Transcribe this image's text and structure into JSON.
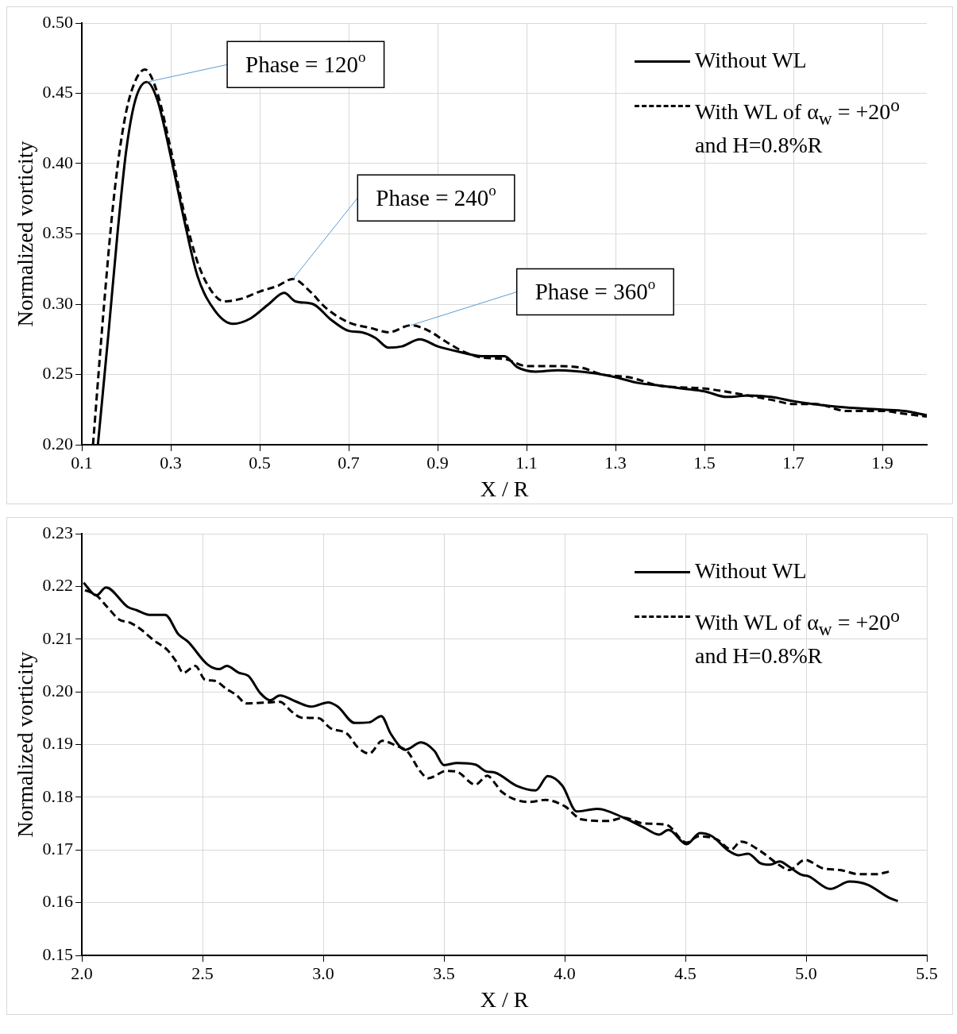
{
  "chart_data": [
    {
      "type": "line",
      "xlabel": "X / R",
      "ylabel": "Normalized vorticity",
      "xlim": [
        0.1,
        2.0
      ],
      "xticks": [
        0.1,
        0.3,
        0.5,
        0.7,
        0.9,
        1.1,
        1.3,
        1.5,
        1.7,
        1.9
      ],
      "ylim": [
        0.2,
        0.5
      ],
      "yticks": [
        {
          "value": 0.2,
          "label": "0.20"
        },
        0.25,
        {
          "value": 0.3,
          "label": "0.30"
        },
        0.35,
        {
          "value": 0.4,
          "label": "0.40"
        },
        0.45,
        {
          "value": 0.5,
          "label": "0.50"
        }
      ],
      "grid": true,
      "legend": "top right",
      "marker": "none",
      "series": [
        {
          "name": "Without WL",
          "color": "#000000",
          "line_style": "solid",
          "x": [
            0.136,
            0.16,
            0.18,
            0.2,
            0.22,
            0.246,
            0.27,
            0.3,
            0.33,
            0.36,
            0.4,
            0.44,
            0.48,
            0.52,
            0.555,
            0.58,
            0.62,
            0.66,
            0.7,
            0.73,
            0.76,
            0.79,
            0.82,
            0.86,
            0.9,
            0.95,
            1.0,
            1.05,
            1.08,
            1.12,
            1.17,
            1.25,
            1.3,
            1.35,
            1.4,
            1.45,
            1.5,
            1.55,
            1.6,
            1.65,
            1.7,
            1.8,
            1.9,
            1.95,
            2.0
          ],
          "values": [
            0.2,
            0.28,
            0.35,
            0.41,
            0.445,
            0.458,
            0.445,
            0.405,
            0.36,
            0.32,
            0.295,
            0.286,
            0.29,
            0.3,
            0.308,
            0.302,
            0.3,
            0.289,
            0.281,
            0.28,
            0.276,
            0.269,
            0.27,
            0.275,
            0.27,
            0.266,
            0.263,
            0.263,
            0.255,
            0.252,
            0.253,
            0.251,
            0.248,
            0.244,
            0.242,
            0.24,
            0.238,
            0.234,
            0.235,
            0.234,
            0.231,
            0.227,
            0.225,
            0.224,
            0.221
          ]
        },
        {
          "name": "With WL of α$_{w}$ = +20$^{o}$ and H=0.8%R",
          "color": "#000000",
          "line_style": "dashed",
          "x": [
            0.125,
            0.15,
            0.17,
            0.19,
            0.21,
            0.242,
            0.27,
            0.3,
            0.33,
            0.36,
            0.39,
            0.42,
            0.46,
            0.5,
            0.54,
            0.575,
            0.61,
            0.65,
            0.7,
            0.75,
            0.79,
            0.84,
            0.88,
            0.92,
            0.96,
            1.0,
            1.05,
            1.1,
            1.15,
            1.22,
            1.27,
            1.33,
            1.4,
            1.5,
            1.58,
            1.65,
            1.7,
            1.75,
            1.82,
            1.9,
            1.95,
            2.0
          ],
          "values": [
            0.2,
            0.3,
            0.37,
            0.42,
            0.45,
            0.467,
            0.45,
            0.41,
            0.365,
            0.33,
            0.31,
            0.302,
            0.304,
            0.309,
            0.313,
            0.318,
            0.31,
            0.297,
            0.287,
            0.283,
            0.28,
            0.285,
            0.281,
            0.273,
            0.266,
            0.262,
            0.261,
            0.256,
            0.256,
            0.255,
            0.25,
            0.248,
            0.242,
            0.24,
            0.236,
            0.232,
            0.229,
            0.229,
            0.224,
            0.224,
            0.222,
            0.22
          ]
        }
      ],
      "annotations": [
        {
          "text": "Phase = 120$^{o}$",
          "x": 0.246,
          "y": 0.458
        },
        {
          "text": "Phase = 240$^{o}$",
          "x": 0.575,
          "y": 0.318
        },
        {
          "text": "Phase = 360$^{o}$",
          "x": 0.84,
          "y": 0.285
        }
      ]
    },
    {
      "type": "line",
      "xlabel": "X / R",
      "ylabel": "Normalized vorticity",
      "xlim": [
        2.0,
        5.5
      ],
      "xticks": [
        {
          "value": 2,
          "label": "2.0"
        },
        2.5,
        {
          "value": 3,
          "label": "3.0"
        },
        3.5,
        {
          "value": 4,
          "label": "4.0"
        },
        4.5,
        {
          "value": 5,
          "label": "5.0"
        },
        5.5
      ],
      "ylim": [
        0.15,
        0.23
      ],
      "yticks": [
        0.15,
        0.16,
        0.17,
        0.18,
        0.19,
        {
          "value": 0.2,
          "label": "0.20"
        },
        0.21,
        0.22,
        0.23
      ],
      "grid": true,
      "legend": "top right",
      "marker": "none",
      "series": [
        {
          "name": "Without WL",
          "color": "#000000",
          "line_style": "solid",
          "x": [
            2.007,
            2.06,
            2.1,
            2.19,
            2.226,
            2.28,
            2.345,
            2.4,
            2.44,
            2.52,
            2.57,
            2.6,
            2.65,
            2.69,
            2.74,
            2.78,
            2.82,
            2.89,
            2.95,
            3.02,
            3.06,
            3.13,
            3.19,
            3.24,
            3.28,
            3.34,
            3.405,
            3.46,
            3.5,
            3.555,
            3.63,
            3.675,
            3.71,
            3.8,
            3.88,
            3.93,
            3.99,
            4.05,
            4.135,
            4.245,
            4.33,
            4.39,
            4.43,
            4.505,
            4.56,
            4.61,
            4.68,
            4.72,
            4.76,
            4.81,
            4.85,
            4.89,
            4.93,
            4.98,
            5.01,
            5.1,
            5.18,
            5.255,
            5.345,
            5.38
          ],
          "values": [
            0.2207,
            0.2183,
            0.2198,
            0.2161,
            0.2155,
            0.2146,
            0.2146,
            0.2109,
            0.2095,
            0.2052,
            0.2043,
            0.2049,
            0.2036,
            0.203,
            0.1997,
            0.1984,
            0.1993,
            0.1981,
            0.1972,
            0.198,
            0.1972,
            0.1941,
            0.1942,
            0.1954,
            0.192,
            0.189,
            0.1904,
            0.1888,
            0.1861,
            0.1865,
            0.1862,
            0.1849,
            0.1847,
            0.1822,
            0.1813,
            0.184,
            0.1822,
            0.1773,
            0.1778,
            0.1761,
            0.1742,
            0.1729,
            0.1738,
            0.1711,
            0.1732,
            0.1726,
            0.1698,
            0.169,
            0.1693,
            0.1675,
            0.1672,
            0.1678,
            0.1668,
            0.1653,
            0.165,
            0.1626,
            0.164,
            0.1634,
            0.1609,
            0.1603
          ]
        },
        {
          "name": "With WL of α$_{w}$ = +20$^{o}$ and H=0.8%R",
          "color": "#000000",
          "line_style": "dashed",
          "x": [
            2.013,
            2.06,
            2.105,
            2.155,
            2.2,
            2.24,
            2.3,
            2.355,
            2.39,
            2.42,
            2.47,
            2.51,
            2.55,
            2.6,
            2.64,
            2.68,
            2.78,
            2.82,
            2.87,
            2.91,
            2.98,
            3.03,
            3.1,
            3.14,
            3.19,
            3.245,
            3.3,
            3.35,
            3.4,
            3.435,
            3.51,
            3.55,
            3.63,
            3.68,
            3.705,
            3.74,
            3.855,
            3.92,
            4.0,
            4.07,
            4.18,
            4.245,
            4.33,
            4.42,
            4.505,
            4.555,
            4.63,
            4.69,
            4.73,
            4.81,
            4.89,
            4.93,
            4.995,
            5.07,
            5.14,
            5.22,
            5.29,
            5.345
          ],
          "values": [
            0.2193,
            0.2183,
            0.2161,
            0.2137,
            0.2131,
            0.212,
            0.2097,
            0.2079,
            0.2058,
            0.2036,
            0.2049,
            0.2023,
            0.2021,
            0.2005,
            0.1994,
            0.1978,
            0.198,
            0.1981,
            0.1962,
            0.1951,
            0.195,
            0.1931,
            0.192,
            0.1896,
            0.1883,
            0.1907,
            0.1898,
            0.1886,
            0.185,
            0.1836,
            0.185,
            0.1849,
            0.1824,
            0.1841,
            0.183,
            0.181,
            0.1791,
            0.1795,
            0.1783,
            0.1758,
            0.1755,
            0.1761,
            0.175,
            0.1748,
            0.1714,
            0.1726,
            0.172,
            0.1701,
            0.1716,
            0.1698,
            0.1671,
            0.1662,
            0.1681,
            0.1665,
            0.1662,
            0.1654,
            0.1654,
            0.1659
          ]
        }
      ]
    }
  ]
}
